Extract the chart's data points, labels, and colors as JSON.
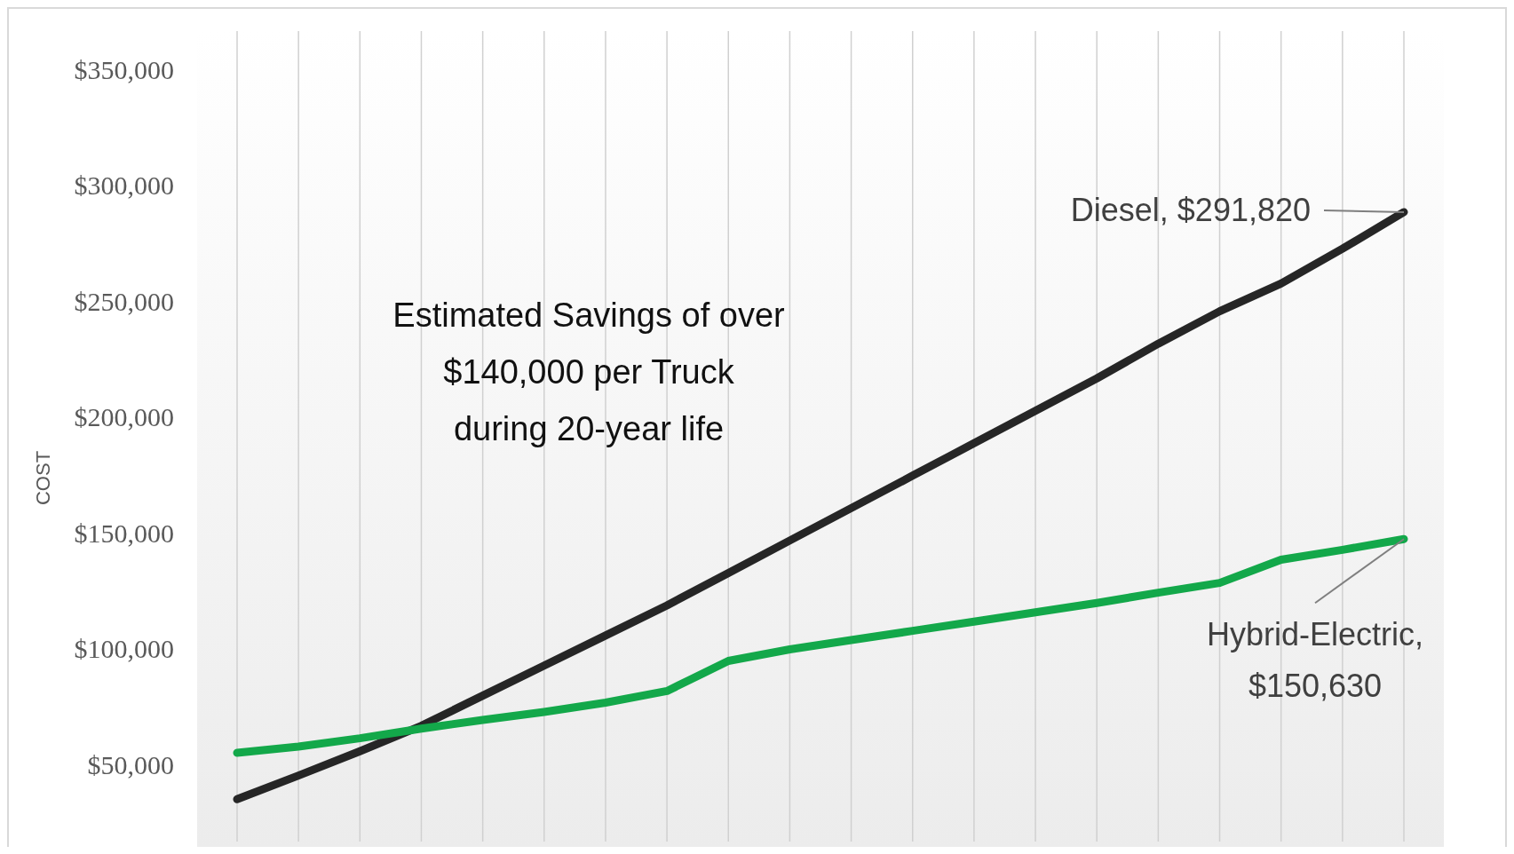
{
  "chart_data": {
    "type": "line",
    "ylabel": "COST",
    "categories": [
      null,
      null,
      null,
      null,
      null,
      null,
      null,
      null,
      null,
      null,
      null,
      null,
      null,
      null,
      null,
      null,
      null,
      null,
      null,
      null
    ],
    "series": [
      {
        "color": "#262626",
        "values": [
          38300,
          48500,
          59000,
          70000,
          83000,
          96000,
          109000,
          122000,
          136000,
          150000,
          164000,
          178000,
          192000,
          206000,
          220000,
          235000,
          249000,
          261000,
          276000,
          291820
        ]
      },
      {
        "color": "#13a84a",
        "values": [
          58300,
          61000,
          64600,
          68800,
          72500,
          76000,
          80000,
          85000,
          98000,
          103000,
          107000,
          111000,
          115000,
          119000,
          123000,
          127500,
          131700,
          141700,
          146000,
          150630
        ]
      }
    ],
    "ylim": [
      20000,
      370000
    ],
    "yticks": [
      {
        "value": 50000,
        "label": "$50,000"
      },
      {
        "value": 100000,
        "label": "$100,000"
      },
      {
        "value": 150000,
        "label": "$150,000"
      },
      {
        "value": 200000,
        "label": "$200,000"
      },
      {
        "value": 250000,
        "label": "$250,000"
      },
      {
        "value": 300000,
        "label": "$300,000"
      },
      {
        "value": 350000,
        "label": "$350,000"
      }
    ],
    "grid": "x",
    "marker": "none",
    "line_style": "solid",
    "annotations": [
      "Estimated Savings of over\n$140,000 per Truck\nduring 20-year life",
      "Diesel,  $291,820",
      "Hybrid-Electric,\n$150,630"
    ]
  }
}
